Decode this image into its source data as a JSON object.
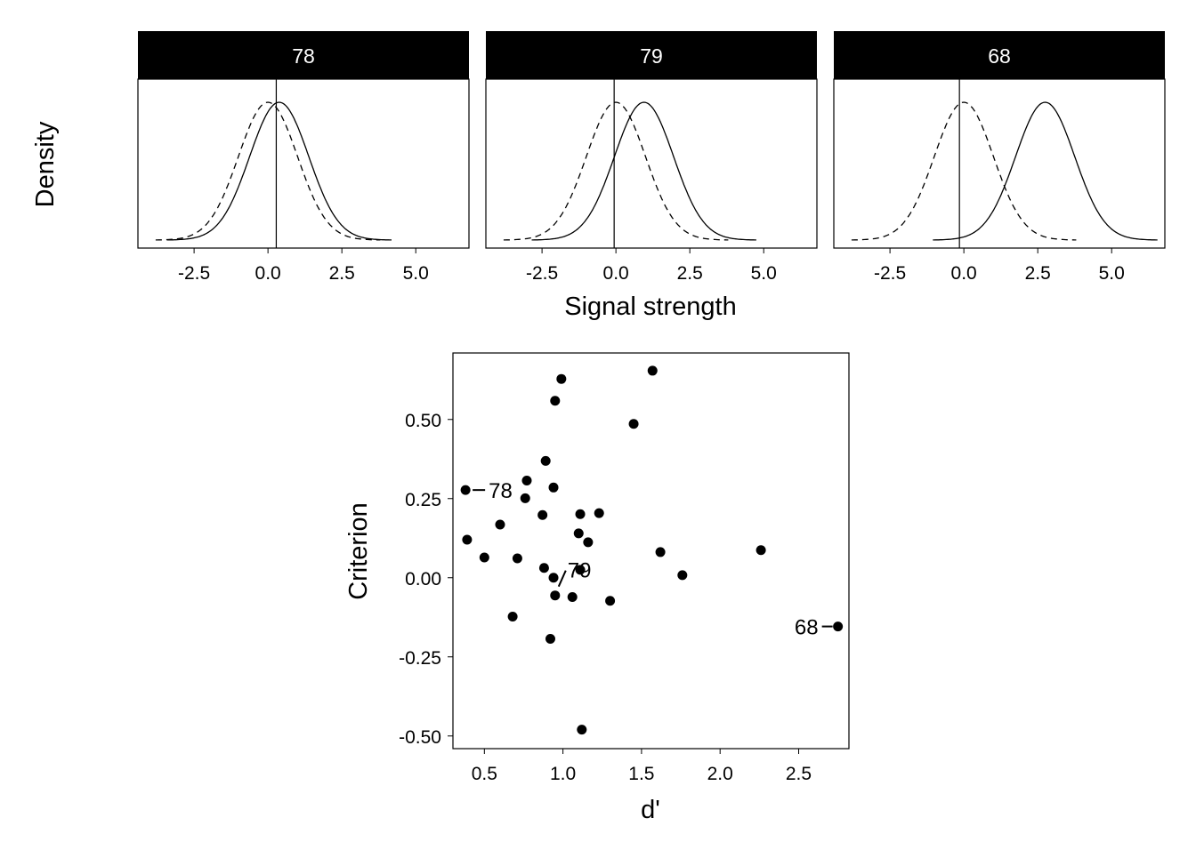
{
  "chart_data": [
    {
      "type": "line",
      "title": "",
      "xlabel": "Signal strength",
      "ylabel": "Density",
      "xticks": [
        -2.5,
        0.0,
        2.5,
        5.0
      ],
      "xtick_labels": [
        "-2.5",
        "0.0",
        "2.5",
        "5.0"
      ],
      "xlim": [
        -4.4,
        6.8
      ],
      "line_styles": {
        "noise": "dashed",
        "signal": "solid",
        "criterion": "vertical line"
      },
      "panels": [
        {
          "label": "78",
          "d_prime": 0.38,
          "criterion": 0.28
        },
        {
          "label": "79",
          "d_prime": 0.95,
          "criterion": -0.06
        },
        {
          "label": "68",
          "d_prime": 2.75,
          "criterion": -0.15
        }
      ]
    },
    {
      "type": "scatter",
      "title": "",
      "xlabel": "d'",
      "ylabel": "Criterion",
      "xlim": [
        0.3,
        2.82
      ],
      "ylim": [
        -0.54,
        0.71
      ],
      "xticks": [
        0.5,
        1.0,
        1.5,
        2.0,
        2.5
      ],
      "xtick_labels": [
        "0.5",
        "1.0",
        "1.5",
        "2.0",
        "2.5"
      ],
      "yticks": [
        0.5,
        0.25,
        0.0,
        -0.25,
        -0.5
      ],
      "ytick_labels": [
        "0.50",
        "0.25",
        "0.00",
        "-0.25",
        "-0.50"
      ],
      "points": [
        {
          "x": 0.38,
          "y": 0.277,
          "label": "78"
        },
        {
          "x": 0.99,
          "y": 0.628
        },
        {
          "x": 1.57,
          "y": 0.654
        },
        {
          "x": 0.95,
          "y": 0.559
        },
        {
          "x": 1.45,
          "y": 0.486
        },
        {
          "x": 0.89,
          "y": 0.369
        },
        {
          "x": 0.77,
          "y": 0.307
        },
        {
          "x": 0.94,
          "y": 0.285
        },
        {
          "x": 0.76,
          "y": 0.251
        },
        {
          "x": 0.87,
          "y": 0.198
        },
        {
          "x": 1.11,
          "y": 0.201
        },
        {
          "x": 1.23,
          "y": 0.204
        },
        {
          "x": 0.6,
          "y": 0.168
        },
        {
          "x": 1.1,
          "y": 0.14
        },
        {
          "x": 1.16,
          "y": 0.112
        },
        {
          "x": 0.39,
          "y": 0.12
        },
        {
          "x": 2.26,
          "y": 0.087
        },
        {
          "x": 1.62,
          "y": 0.081
        },
        {
          "x": 0.5,
          "y": 0.064
        },
        {
          "x": 0.71,
          "y": 0.061
        },
        {
          "x": 0.88,
          "y": 0.031
        },
        {
          "x": 1.11,
          "y": 0.025
        },
        {
          "x": 1.76,
          "y": 0.008
        },
        {
          "x": 0.94,
          "y": 0.0
        },
        {
          "x": 0.95,
          "y": -0.056,
          "label": "79"
        },
        {
          "x": 1.06,
          "y": -0.061
        },
        {
          "x": 1.3,
          "y": -0.073
        },
        {
          "x": 0.68,
          "y": -0.123
        },
        {
          "x": 0.92,
          "y": -0.193
        },
        {
          "x": 2.75,
          "y": -0.154,
          "label": "68"
        },
        {
          "x": 1.12,
          "y": -0.48
        }
      ]
    }
  ]
}
